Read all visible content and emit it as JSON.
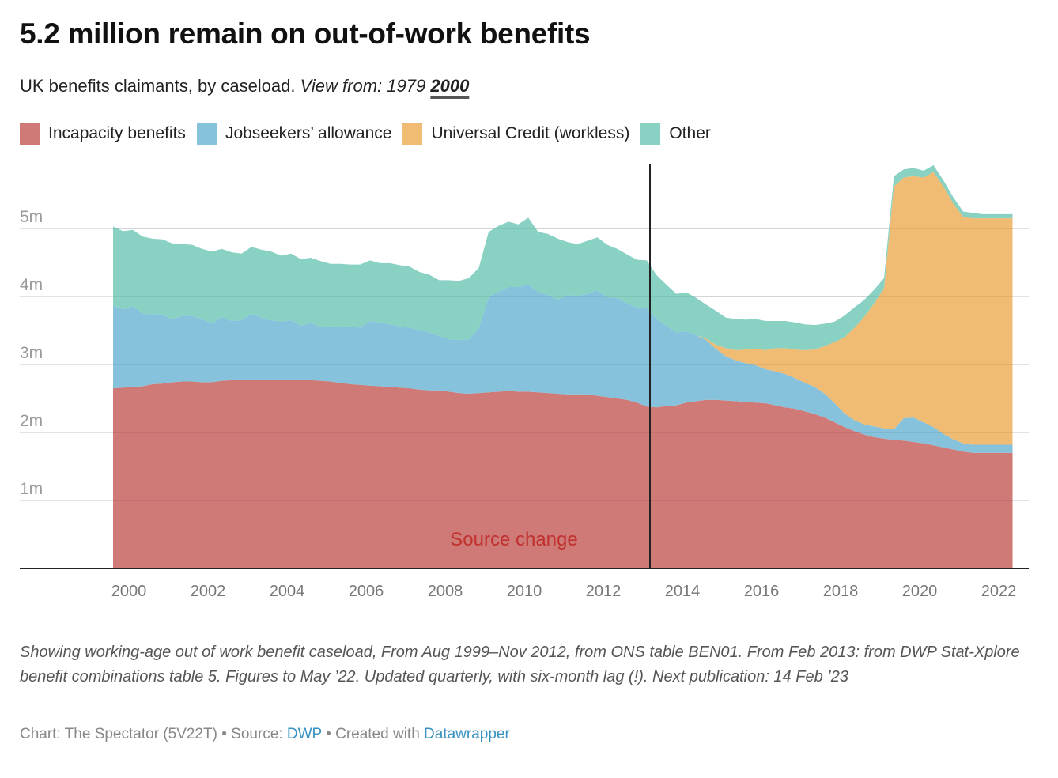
{
  "header": {
    "title": "5.2 million remain on out-of-work benefits",
    "subtitle_text": "UK benefits claimants, by caseload.",
    "view_from_label": "View from:",
    "view_options": [
      {
        "label": "1979",
        "active": false
      },
      {
        "label": "2000",
        "active": true
      }
    ]
  },
  "legend": [
    {
      "label": "Incapacity benefits",
      "color": "#cf7a77"
    },
    {
      "label": "Jobseekers’ allowance",
      "color": "#86c2dc"
    },
    {
      "label": "Universal Credit (workless)",
      "color": "#f0bb72"
    },
    {
      "label": "Other",
      "color": "#88d1c3"
    }
  ],
  "chart_data": {
    "type": "area",
    "stacked": true,
    "title": "5.2 million remain on out-of-work benefits",
    "subtitle": "UK benefits claimants, by caseload",
    "xlabel": "",
    "ylabel": "",
    "xlim": [
      1999.2,
      2022.75
    ],
    "ylim": [
      0,
      5.9
    ],
    "x_ticks": [
      2000,
      2002,
      2004,
      2006,
      2008,
      2010,
      2012,
      2014,
      2016,
      2018,
      2020,
      2022
    ],
    "y_ticks": [
      1,
      2,
      3,
      4,
      5
    ],
    "y_tick_labels": [
      "1m",
      "2m",
      "3m",
      "4m",
      "5m"
    ],
    "grid": true,
    "legend_position": "top-left",
    "units": "millions",
    "annotation": {
      "label": "Source change",
      "x": 2013.2,
      "color": "#c0312f"
    },
    "x": [
      1999.6,
      1999.85,
      2000.1,
      2000.35,
      2000.6,
      2000.85,
      2001.1,
      2001.35,
      2001.6,
      2001.85,
      2002.1,
      2002.35,
      2002.6,
      2002.85,
      2003.1,
      2003.35,
      2003.6,
      2003.85,
      2004.1,
      2004.35,
      2004.6,
      2004.85,
      2005.1,
      2005.35,
      2005.6,
      2005.85,
      2006.1,
      2006.35,
      2006.6,
      2006.85,
      2007.1,
      2007.35,
      2007.6,
      2007.85,
      2008.1,
      2008.35,
      2008.6,
      2008.85,
      2009.1,
      2009.35,
      2009.6,
      2009.85,
      2010.1,
      2010.35,
      2010.6,
      2010.85,
      2011.1,
      2011.35,
      2011.6,
      2011.85,
      2012.1,
      2012.35,
      2012.6,
      2012.85,
      2013.1,
      2013.35,
      2013.6,
      2013.85,
      2014.1,
      2014.35,
      2014.6,
      2014.85,
      2015.1,
      2015.35,
      2015.6,
      2015.85,
      2016.1,
      2016.35,
      2016.6,
      2016.85,
      2017.1,
      2017.35,
      2017.6,
      2017.85,
      2018.1,
      2018.35,
      2018.6,
      2018.85,
      2019.1,
      2019.35,
      2019.6,
      2019.85,
      2020.1,
      2020.35,
      2020.6,
      2020.85,
      2021.1,
      2021.35,
      2021.6,
      2021.85,
      2022.1,
      2022.35
    ],
    "series": [
      {
        "name": "Incapacity benefits",
        "values": [
          2.65,
          2.66,
          2.67,
          2.68,
          2.71,
          2.72,
          2.74,
          2.75,
          2.75,
          2.74,
          2.74,
          2.76,
          2.77,
          2.77,
          2.77,
          2.77,
          2.77,
          2.77,
          2.77,
          2.77,
          2.77,
          2.76,
          2.75,
          2.73,
          2.71,
          2.7,
          2.69,
          2.68,
          2.67,
          2.66,
          2.65,
          2.63,
          2.62,
          2.62,
          2.6,
          2.58,
          2.57,
          2.58,
          2.59,
          2.6,
          2.61,
          2.6,
          2.6,
          2.59,
          2.58,
          2.57,
          2.56,
          2.56,
          2.56,
          2.54,
          2.52,
          2.5,
          2.48,
          2.44,
          2.38,
          2.37,
          2.39,
          2.4,
          2.44,
          2.46,
          2.48,
          2.48,
          2.47,
          2.46,
          2.45,
          2.44,
          2.43,
          2.4,
          2.37,
          2.35,
          2.31,
          2.27,
          2.22,
          2.15,
          2.08,
          2.02,
          1.97,
          1.93,
          1.91,
          1.89,
          1.88,
          1.86,
          1.84,
          1.81,
          1.78,
          1.75,
          1.72,
          1.7,
          1.7,
          1.7,
          1.7,
          1.7
        ]
      },
      {
        "name": "Jobseekers’ allowance",
        "values": [
          1.22,
          1.15,
          1.19,
          1.07,
          1.03,
          1.02,
          0.92,
          0.97,
          0.96,
          0.93,
          0.86,
          0.94,
          0.87,
          0.88,
          0.98,
          0.92,
          0.88,
          0.86,
          0.88,
          0.8,
          0.84,
          0.79,
          0.81,
          0.82,
          0.85,
          0.84,
          0.95,
          0.93,
          0.92,
          0.9,
          0.89,
          0.88,
          0.85,
          0.8,
          0.77,
          0.78,
          0.8,
          0.95,
          1.4,
          1.47,
          1.53,
          1.54,
          1.58,
          1.48,
          1.44,
          1.38,
          1.46,
          1.45,
          1.48,
          1.55,
          1.47,
          1.48,
          1.42,
          1.4,
          1.45,
          1.3,
          1.18,
          1.07,
          1.05,
          0.97,
          0.88,
          0.75,
          0.65,
          0.6,
          0.57,
          0.55,
          0.5,
          0.5,
          0.49,
          0.45,
          0.42,
          0.4,
          0.35,
          0.28,
          0.2,
          0.16,
          0.15,
          0.16,
          0.15,
          0.16,
          0.33,
          0.36,
          0.31,
          0.27,
          0.2,
          0.15,
          0.12,
          0.12,
          0.12,
          0.12,
          0.12,
          0.12
        ]
      },
      {
        "name": "Universal Credit (workless)",
        "values": [
          0,
          0,
          0,
          0,
          0,
          0,
          0,
          0,
          0,
          0,
          0,
          0,
          0,
          0,
          0,
          0,
          0,
          0,
          0,
          0,
          0,
          0,
          0,
          0,
          0,
          0,
          0,
          0,
          0,
          0,
          0,
          0,
          0,
          0,
          0,
          0,
          0,
          0,
          0,
          0,
          0,
          0,
          0,
          0,
          0,
          0,
          0,
          0,
          0,
          0,
          0,
          0,
          0,
          0,
          0,
          0,
          0,
          0,
          0,
          0,
          0.02,
          0.06,
          0.12,
          0.15,
          0.2,
          0.24,
          0.28,
          0.34,
          0.38,
          0.42,
          0.48,
          0.55,
          0.7,
          0.9,
          1.12,
          1.36,
          1.58,
          1.81,
          2.06,
          3.57,
          3.54,
          3.55,
          3.6,
          3.75,
          3.64,
          3.47,
          3.33,
          3.33,
          3.33,
          3.33,
          3.33,
          3.33
        ]
      },
      {
        "name": "Other",
        "values": [
          1.16,
          1.15,
          1.12,
          1.13,
          1.11,
          1.1,
          1.12,
          1.05,
          1.05,
          1.03,
          1.06,
          1.0,
          1.01,
          0.98,
          0.98,
          1.0,
          1.01,
          0.97,
          0.98,
          0.98,
          0.96,
          0.97,
          0.92,
          0.93,
          0.91,
          0.93,
          0.89,
          0.88,
          0.9,
          0.9,
          0.9,
          0.85,
          0.85,
          0.82,
          0.87,
          0.87,
          0.9,
          0.89,
          0.96,
          0.97,
          0.96,
          0.92,
          0.98,
          0.88,
          0.9,
          0.9,
          0.78,
          0.76,
          0.78,
          0.78,
          0.77,
          0.72,
          0.72,
          0.7,
          0.7,
          0.64,
          0.6,
          0.57,
          0.57,
          0.55,
          0.5,
          0.5,
          0.45,
          0.46,
          0.44,
          0.44,
          0.43,
          0.4,
          0.4,
          0.4,
          0.38,
          0.36,
          0.33,
          0.3,
          0.32,
          0.3,
          0.25,
          0.2,
          0.15,
          0.15,
          0.12,
          0.12,
          0.1,
          0.1,
          0.09,
          0.09,
          0.08,
          0.08,
          0.06,
          0.06,
          0.06,
          0.06
        ]
      }
    ]
  },
  "notes": "Showing working-age out of work benefit caseload, From Aug 1999–Nov 2012, from ONS table BEN01. From Feb 2013: from DWP Stat-Xplore benefit combinations table 5. Figures to May ’22. Updated quarterly, with six-month lag (!). Next publication: 14 Feb ’23",
  "byline": {
    "chart_prefix": "Chart: The Spectator (5V22T)",
    "sep1": " • Source: ",
    "source_link": "DWP",
    "sep2": " • Created with ",
    "tool_link": "Datawrapper"
  }
}
